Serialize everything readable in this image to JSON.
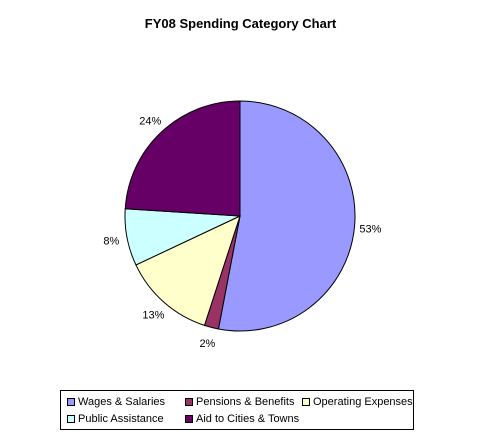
{
  "chart_data": {
    "type": "pie",
    "title": "FY08 Spending Category Chart",
    "categories": [
      "Wages & Salaries",
      "Pensions & Benefits",
      "Operating Expenses",
      "Public Assistance",
      "Aid to Cities & Towns"
    ],
    "values": [
      53,
      2,
      13,
      8,
      24
    ],
    "labels": [
      "53%",
      "2%",
      "13%",
      "8%",
      "24%"
    ],
    "colors": [
      "#9999ff",
      "#993366",
      "#ffffcc",
      "#ccffff",
      "#660066"
    ],
    "legend_position": "bottom"
  }
}
